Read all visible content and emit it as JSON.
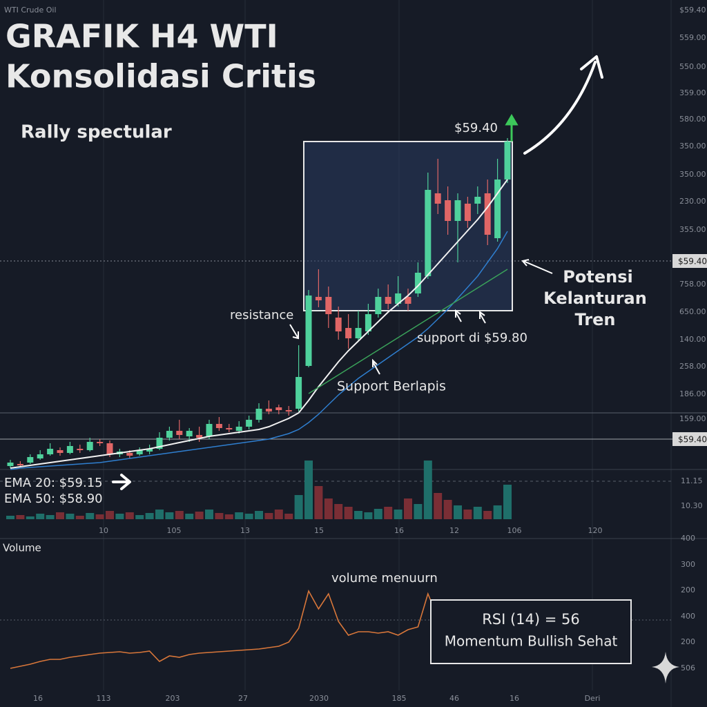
{
  "header": {
    "source": "WTI Crude Oil",
    "title_lines": [
      "GRAFIK H4 WTI",
      "Konsolidasi Critis"
    ]
  },
  "chart_data": [
    {
      "type": "candlestick",
      "ylim": [
        0,
        680
      ],
      "open": [
        5,
        8,
        10,
        16,
        22,
        28,
        24,
        30,
        28,
        40,
        38,
        22,
        24,
        22,
        26,
        30,
        46,
        56,
        48,
        50,
        48,
        66,
        60,
        56,
        62,
        72,
        88,
        90,
        86,
        88,
        150,
        250,
        250,
        220,
        205,
        190,
        200,
        225,
        250,
        240,
        250,
        255,
        280,
        400,
        390,
        360,
        385,
        385,
        400,
        335,
        420
      ],
      "close": [
        10,
        6,
        18,
        22,
        30,
        24,
        34,
        28,
        40,
        38,
        22,
        26,
        20,
        28,
        30,
        46,
        56,
        50,
        56,
        46,
        66,
        60,
        58,
        62,
        72,
        88,
        84,
        86,
        84,
        134,
        252,
        245,
        225,
        200,
        190,
        205,
        225,
        250,
        240,
        255,
        240,
        285,
        405,
        385,
        360,
        390,
        360,
        395,
        340,
        420,
        475
      ],
      "high": [
        14,
        12,
        22,
        28,
        38,
        32,
        40,
        36,
        46,
        44,
        42,
        30,
        28,
        32,
        36,
        54,
        62,
        72,
        60,
        62,
        72,
        76,
        66,
        70,
        78,
        96,
        100,
        94,
        92,
        180,
        260,
        290,
        265,
        236,
        225,
        230,
        240,
        262,
        268,
        280,
        262,
        300,
        430,
        450,
        410,
        400,
        395,
        410,
        420,
        450,
        480
      ],
      "low": [
        2,
        3,
        8,
        14,
        20,
        20,
        22,
        24,
        26,
        34,
        18,
        18,
        16,
        20,
        22,
        28,
        42,
        44,
        40,
        40,
        44,
        56,
        54,
        52,
        58,
        68,
        80,
        80,
        78,
        84,
        148,
        235,
        205,
        188,
        175,
        185,
        195,
        220,
        232,
        236,
        230,
        250,
        276,
        370,
        340,
        300,
        350,
        370,
        325,
        330,
        415
      ],
      "up_color": "#4fd19c",
      "down_color": "#e06666",
      "lines": [
        {
          "color": "#f2f2f2",
          "values": [
            2,
            4,
            6,
            8,
            10,
            12,
            14,
            16,
            18,
            20,
            22,
            24,
            26,
            28,
            30,
            33,
            36,
            39,
            42,
            45,
            48,
            50,
            52,
            54,
            56,
            58,
            62,
            68,
            74,
            82,
            100,
            120,
            138,
            156,
            172,
            186,
            200,
            214,
            228,
            240,
            252,
            266,
            282,
            298,
            314,
            330,
            346,
            362,
            380,
            400,
            420
          ]
        },
        {
          "color": "#2f7fd0",
          "values": [
            0,
            2,
            3,
            4,
            5,
            6,
            7,
            8,
            9,
            10,
            12,
            14,
            16,
            18,
            20,
            22,
            24,
            26,
            28,
            30,
            32,
            34,
            36,
            38,
            40,
            42,
            44,
            48,
            52,
            58,
            68,
            80,
            94,
            108,
            120,
            132,
            142,
            152,
            162,
            172,
            182,
            192,
            204,
            218,
            232,
            248,
            264,
            280,
            300,
            320,
            345
          ]
        },
        {
          "color": "#3aa35a",
          "values": [
            null,
            null,
            null,
            null,
            null,
            null,
            null,
            null,
            null,
            null,
            null,
            null,
            null,
            null,
            null,
            null,
            null,
            null,
            null,
            null,
            null,
            null,
            null,
            null,
            null,
            null,
            null,
            null,
            null,
            null,
            110,
            119,
            128,
            137,
            146,
            155,
            164,
            173,
            182,
            191,
            200,
            209,
            218,
            227,
            236,
            245,
            254,
            263,
            272,
            281,
            290
          ]
        }
      ],
      "right_labels": [
        "$59.40",
        "559.00",
        "550.00",
        "359.00",
        "580.00",
        "350.00",
        "350.00",
        "230.00",
        "355.00",
        "758.00",
        "650.00",
        "140.00",
        "258.00",
        "186.00",
        "159.00"
      ],
      "price_badges": [
        "$59.40",
        "$59.40"
      ],
      "annotations": {
        "rally": "Rally spectular",
        "last_price": "$59.40",
        "resistance": "resistance",
        "support_layered": "Support Berlapis",
        "support_level": "support di $59.80",
        "potential": [
          "Potensi",
          "Kelanturan",
          "Tren"
        ],
        "ema20": "EMA 20: $59.15",
        "ema50": "EMA 50: $58.90"
      }
    },
    {
      "type": "bar",
      "ylim": [
        0,
        90
      ],
      "values": [
        5,
        6,
        4,
        8,
        6,
        10,
        8,
        5,
        9,
        7,
        12,
        8,
        10,
        6,
        9,
        14,
        10,
        12,
        8,
        11,
        14,
        9,
        7,
        10,
        8,
        12,
        9,
        14,
        8,
        35,
        85,
        48,
        30,
        22,
        18,
        12,
        10,
        15,
        18,
        14,
        30,
        22,
        85,
        38,
        28,
        20,
        14,
        18,
        12,
        20,
        50
      ],
      "right_labels": [
        "11.15",
        "10.30"
      ],
      "x_labels": [
        "10",
        "105",
        "13",
        "15",
        "16",
        "12",
        "106",
        "120"
      ]
    },
    {
      "type": "line",
      "title": "Volume",
      "ylim": [
        0,
        200
      ],
      "color": "#d9773a",
      "values": [
        32,
        35,
        38,
        42,
        45,
        45,
        48,
        50,
        52,
        54,
        55,
        56,
        54,
        55,
        57,
        42,
        50,
        48,
        52,
        54,
        55,
        56,
        57,
        58,
        59,
        60,
        62,
        64,
        70,
        90,
        144,
        118,
        140,
        100,
        80,
        85,
        85,
        83,
        85,
        80,
        88,
        92,
        140,
        105,
        95,
        92,
        92
      ],
      "right_labels": [
        "400",
        "300",
        "200",
        "400",
        "200",
        "506"
      ],
      "x_labels": [
        "16",
        "113",
        "203",
        "27",
        "2030",
        "185",
        "46",
        "16",
        "Deri"
      ],
      "annotation": "volume menuurn",
      "box": [
        "RSI (14) = 56",
        "Momentum Bullish Sehat"
      ]
    }
  ]
}
